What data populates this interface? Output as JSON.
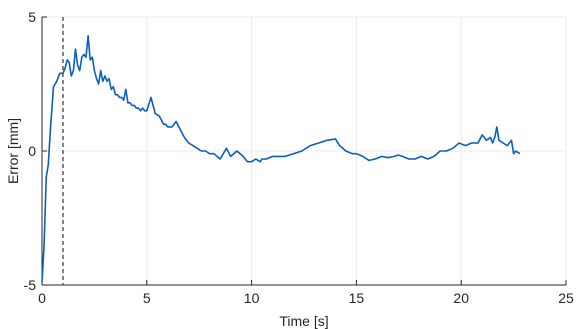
{
  "chart_data": {
    "type": "line",
    "title": "",
    "xlabel": "Time [s]",
    "ylabel": "Error [mm]",
    "xlim": [
      0,
      25
    ],
    "ylim": [
      -5,
      5
    ],
    "xticks": [
      0,
      5,
      10,
      15,
      20,
      25
    ],
    "yticks": [
      -5,
      0,
      5
    ],
    "grid": true,
    "colors": {
      "line": "#0a5fbf",
      "marker": "#404040"
    },
    "vline": {
      "x": 1.0,
      "style": "dashed"
    },
    "series": [
      {
        "x": [
          0.0,
          0.1,
          0.2,
          0.3,
          0.4,
          0.55,
          0.7,
          0.85,
          1.0,
          1.1,
          1.2,
          1.3,
          1.4,
          1.5,
          1.6,
          1.7,
          1.8,
          1.9,
          2.0,
          2.1,
          2.2,
          2.3,
          2.4,
          2.5,
          2.6,
          2.7,
          2.8,
          2.9,
          3.0,
          3.1,
          3.2,
          3.3,
          3.4,
          3.5,
          3.6,
          3.7,
          3.8,
          3.9,
          4.0,
          4.1,
          4.2,
          4.3,
          4.4,
          4.5,
          4.6,
          4.7,
          4.8,
          4.9,
          5.0,
          5.2,
          5.4,
          5.6,
          5.8,
          5.9,
          6.0,
          6.2,
          6.4,
          6.6,
          6.8,
          7.0,
          7.2,
          7.4,
          7.6,
          7.8,
          8.0,
          8.2,
          8.5,
          8.8,
          9.0,
          9.3,
          9.6,
          9.8,
          10.0,
          10.2,
          10.4,
          10.5,
          10.7,
          11.0,
          11.3,
          11.6,
          12.0,
          12.4,
          12.8,
          13.2,
          13.6,
          14.0,
          14.2,
          14.5,
          14.8,
          15.0,
          15.3,
          15.6,
          15.9,
          16.2,
          16.5,
          16.8,
          17.0,
          17.2,
          17.5,
          17.8,
          18.1,
          18.4,
          18.7,
          19.0,
          19.3,
          19.6,
          19.9,
          20.2,
          20.5,
          20.8,
          21.0,
          21.2,
          21.4,
          21.5,
          21.6,
          21.7,
          21.8,
          22.0,
          22.2,
          22.4,
          22.5,
          22.6,
          22.8
        ],
        "y": [
          -4.9,
          -3.5,
          -1.0,
          -0.5,
          0.8,
          2.4,
          2.6,
          2.9,
          2.9,
          3.1,
          3.4,
          3.3,
          2.8,
          3.0,
          3.8,
          3.2,
          3.0,
          3.5,
          3.6,
          3.5,
          4.3,
          3.4,
          3.5,
          3.0,
          2.7,
          2.5,
          3.0,
          2.6,
          2.8,
          2.6,
          2.7,
          2.3,
          2.4,
          2.1,
          2.1,
          2.0,
          2.0,
          1.9,
          2.3,
          1.8,
          1.8,
          1.7,
          1.7,
          1.6,
          1.6,
          1.5,
          1.6,
          1.5,
          1.5,
          2.0,
          1.4,
          1.3,
          1.0,
          1.0,
          0.9,
          0.9,
          1.1,
          0.8,
          0.5,
          0.3,
          0.2,
          0.1,
          0.0,
          0.0,
          -0.1,
          -0.1,
          -0.3,
          0.1,
          -0.2,
          0.0,
          -0.2,
          -0.4,
          -0.4,
          -0.3,
          -0.4,
          -0.3,
          -0.3,
          -0.2,
          -0.2,
          -0.2,
          -0.1,
          0.0,
          0.2,
          0.3,
          0.4,
          0.45,
          0.2,
          0.0,
          -0.1,
          -0.1,
          -0.2,
          -0.35,
          -0.3,
          -0.2,
          -0.25,
          -0.2,
          -0.15,
          -0.2,
          -0.3,
          -0.3,
          -0.2,
          -0.3,
          -0.2,
          0.0,
          0.0,
          0.1,
          0.3,
          0.2,
          0.3,
          0.3,
          0.6,
          0.4,
          0.5,
          0.3,
          0.5,
          0.9,
          0.4,
          0.3,
          0.2,
          0.4,
          -0.1,
          0.0,
          -0.1
        ]
      }
    ]
  }
}
